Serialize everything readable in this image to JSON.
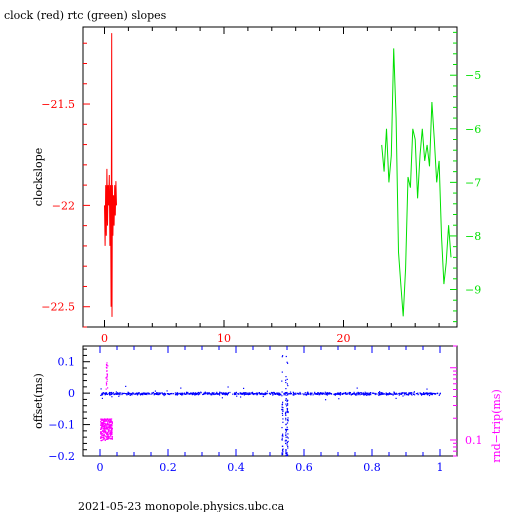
{
  "footer": "2021-05-23  monopole.physics.ubc.ca",
  "colors": {
    "clock": "#ff0000",
    "rtc": "#00e000",
    "offset": "#0000ff",
    "roundtrip": "#ff00ff",
    "frame": "#000000"
  },
  "chart_data": [
    {
      "type": "line",
      "title": "clock (red) rtc (green) slopes",
      "ylabel": "clockslope",
      "y2label": "",
      "xlim": [
        -1.8,
        29.5
      ],
      "ylim": [
        -22.6,
        -21.12
      ],
      "y2lim": [
        -9.7,
        -4.1
      ],
      "x_ticks": [
        0,
        10,
        20
      ],
      "x_tick_labels": [
        "0",
        "10",
        "20"
      ],
      "y_ticks": [
        -21.5,
        -22,
        -22.5
      ],
      "y_tick_labels": [
        "−21.5",
        "−22",
        "−22.5"
      ],
      "y2_ticks": [
        -5,
        -6,
        -7,
        -8,
        -9
      ],
      "y2_tick_labels": [
        "−5",
        "−6",
        "−7",
        "−8",
        "−9"
      ],
      "grid": false,
      "series": [
        {
          "axis": "left",
          "color": "#ff0000",
          "x": [
            0.0,
            0.05,
            0.1,
            0.15,
            0.2,
            0.25,
            0.3,
            0.35,
            0.4,
            0.45,
            0.5,
            0.55,
            0.6,
            0.63,
            0.66,
            0.7,
            0.75,
            0.8,
            0.85,
            0.9,
            0.95,
            1.0
          ],
          "y": [
            -22.0,
            -22.2,
            -21.9,
            -22.15,
            -21.82,
            -22.1,
            -21.9,
            -22.0,
            -21.85,
            -22.2,
            -21.9,
            -22.5,
            -21.15,
            -22.55,
            -21.9,
            -22.15,
            -21.95,
            -22.1,
            -21.9,
            -22.05,
            -21.88,
            -22.0
          ]
        },
        {
          "axis": "right",
          "color": "#00e000",
          "x": [
            23.2,
            23.4,
            23.6,
            23.8,
            24.0,
            24.2,
            24.4,
            24.6,
            24.8,
            25.0,
            25.2,
            25.4,
            25.6,
            25.8,
            26.0,
            26.2,
            26.4,
            26.6,
            26.8,
            27.0,
            27.2,
            27.4,
            27.6,
            27.8,
            28.0,
            28.2,
            28.4,
            28.6,
            28.8,
            29.0
          ],
          "y": [
            -6.3,
            -6.8,
            -6.0,
            -7.0,
            -6.5,
            -4.5,
            -5.8,
            -8.3,
            -8.9,
            -9.5,
            -8.6,
            -6.9,
            -7.1,
            -6.0,
            -6.2,
            -7.3,
            -6.5,
            -6.0,
            -6.6,
            -6.3,
            -6.7,
            -5.5,
            -6.2,
            -7.0,
            -6.6,
            -8.0,
            -8.9,
            -8.5,
            -7.8,
            -8.4
          ]
        }
      ]
    },
    {
      "type": "scatter",
      "title": "",
      "xlabel": "",
      "ylabel": "offset(ms)",
      "y2label": "rnd−trip(ms)",
      "xlim": [
        -0.05,
        1.05
      ],
      "ylim": [
        -0.2,
        0.15
      ],
      "y2lim_log": [
        0.06,
        2.0
      ],
      "x_ticks": [
        0,
        0.2,
        0.4,
        0.6,
        0.8,
        1
      ],
      "x_tick_labels": [
        "0",
        "0.2",
        "0.4",
        "0.6",
        "0.8",
        "1"
      ],
      "y_ticks": [
        0.1,
        0,
        -0.1,
        -0.2
      ],
      "y_tick_labels": [
        "0.1",
        "0",
        "−0.1",
        "−0.2"
      ],
      "y2_ticks": [
        0.1
      ],
      "y2_tick_labels": [
        "0.1"
      ],
      "grid": false,
      "series": [
        {
          "axis": "left",
          "color": "#0000ff",
          "description_points": {
            "baseline_x_range": [
              0,
              1
            ],
            "baseline_y": 0.0,
            "baseline_noise": 0.006,
            "spike_x": [
              0.535,
              0.545,
              0.55
            ],
            "spike_y_min": -0.2,
            "spike_y_max": 0.13
          }
        },
        {
          "axis": "right",
          "color": "#ff00ff",
          "description_points": {
            "x_range": [
              0.0,
              0.035
            ],
            "y_range": [
              0.1,
              0.2
            ],
            "outliers_y": [
              0.5,
              1.2
            ]
          }
        }
      ]
    }
  ]
}
